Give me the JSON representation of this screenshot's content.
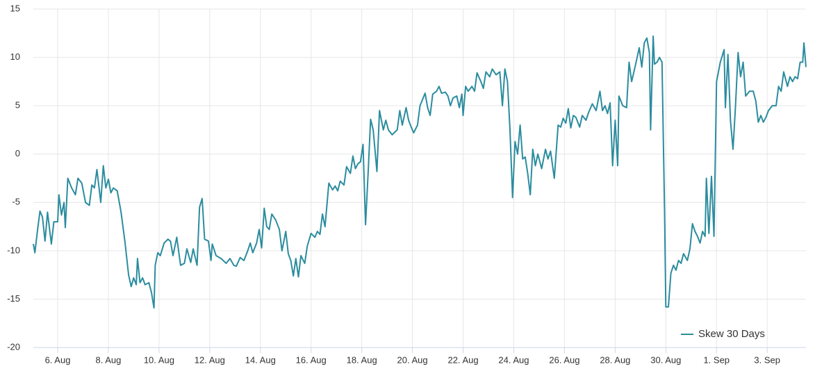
{
  "chart_data": {
    "type": "line",
    "x": [
      5.04,
      5.1,
      5.2,
      5.3,
      5.4,
      5.5,
      5.6,
      5.75,
      5.85,
      6.0,
      6.05,
      6.15,
      6.25,
      6.3,
      6.4,
      6.55,
      6.7,
      6.8,
      6.95,
      7.1,
      7.25,
      7.35,
      7.45,
      7.55,
      7.7,
      7.8,
      7.9,
      8.0,
      8.1,
      8.2,
      8.35,
      8.5,
      8.65,
      8.8,
      8.9,
      9.0,
      9.1,
      9.15,
      9.25,
      9.35,
      9.45,
      9.6,
      9.7,
      9.8,
      9.85,
      9.95,
      10.05,
      10.2,
      10.35,
      10.45,
      10.55,
      10.7,
      10.85,
      11.0,
      11.1,
      11.25,
      11.35,
      11.5,
      11.6,
      11.7,
      11.8,
      11.95,
      12.05,
      12.1,
      12.25,
      12.45,
      12.65,
      12.8,
      12.95,
      13.05,
      13.2,
      13.35,
      13.5,
      13.6,
      13.7,
      13.85,
      13.95,
      14.05,
      14.15,
      14.25,
      14.35,
      14.45,
      14.6,
      14.75,
      14.85,
      15.0,
      15.1,
      15.2,
      15.3,
      15.4,
      15.5,
      15.6,
      15.75,
      15.85,
      16.0,
      16.15,
      16.25,
      16.35,
      16.45,
      16.55,
      16.7,
      16.85,
      16.95,
      17.05,
      17.15,
      17.3,
      17.4,
      17.55,
      17.65,
      17.75,
      17.85,
      17.95,
      18.05,
      18.15,
      18.25,
      18.35,
      18.45,
      18.6,
      18.7,
      18.85,
      18.95,
      19.05,
      19.2,
      19.4,
      19.5,
      19.6,
      19.75,
      19.85,
      19.95,
      20.05,
      20.2,
      20.3,
      20.5,
      20.6,
      20.7,
      20.8,
      20.95,
      21.05,
      21.15,
      21.3,
      21.4,
      21.5,
      21.6,
      21.75,
      21.85,
      21.95,
      22.0,
      22.1,
      22.2,
      22.35,
      22.45,
      22.55,
      22.7,
      22.8,
      22.9,
      23.05,
      23.15,
      23.3,
      23.45,
      23.55,
      23.65,
      23.75,
      23.85,
      23.95,
      24.05,
      24.15,
      24.25,
      24.35,
      24.45,
      24.55,
      24.65,
      24.75,
      24.85,
      24.95,
      25.1,
      25.25,
      25.35,
      25.45,
      25.6,
      25.75,
      25.85,
      25.95,
      26.05,
      26.15,
      26.25,
      26.35,
      26.45,
      26.6,
      26.7,
      26.85,
      26.95,
      27.1,
      27.25,
      27.4,
      27.5,
      27.6,
      27.7,
      27.8,
      27.9,
      28.0,
      28.1,
      28.15,
      28.3,
      28.45,
      28.55,
      28.65,
      28.8,
      28.95,
      29.05,
      29.15,
      29.25,
      29.35,
      29.4,
      29.5,
      29.55,
      29.65,
      29.75,
      29.85,
      29.95,
      30.0,
      30.1,
      30.2,
      30.3,
      30.4,
      30.5,
      30.6,
      30.7,
      30.85,
      30.95,
      31.05,
      31.15,
      31.25,
      31.35,
      31.45,
      31.55,
      31.6,
      31.7,
      31.8,
      31.9,
      32.0,
      32.15,
      32.3,
      32.35,
      32.45,
      32.55,
      32.65,
      32.75,
      32.85,
      32.95,
      33.05,
      33.15,
      33.3,
      33.45,
      33.55,
      33.65,
      33.75,
      33.85,
      33.95,
      34.05,
      34.2,
      34.35,
      34.45,
      34.55,
      34.65,
      34.8,
      34.9,
      35.0,
      35.1,
      35.2,
      35.3,
      35.4,
      35.45,
      35.53
    ],
    "series": [
      {
        "name": "Skew 30 Days",
        "color": "#2b8c9e",
        "values": [
          -9.3,
          -10.2,
          -8,
          -5.9,
          -6.5,
          -9,
          -6,
          -9.3,
          -7,
          -7,
          -4.2,
          -6.3,
          -5,
          -7.6,
          -2.5,
          -3.5,
          -4.2,
          -2.5,
          -3,
          -5,
          -5.3,
          -3.2,
          -3.5,
          -1.6,
          -5,
          -1.2,
          -3.5,
          -2.6,
          -4,
          -3.5,
          -3.8,
          -6,
          -9,
          -12.5,
          -13.7,
          -12.8,
          -13.5,
          -10.8,
          -13.3,
          -12.8,
          -13.5,
          -13.3,
          -14.3,
          -15.9,
          -11.5,
          -10.2,
          -10.5,
          -9.2,
          -8.8,
          -9,
          -10.5,
          -8.6,
          -11.5,
          -11.3,
          -9.8,
          -11.2,
          -9.8,
          -11.5,
          -5.5,
          -4.6,
          -8.8,
          -9,
          -11,
          -9.3,
          -10.5,
          -10.8,
          -11.3,
          -10.8,
          -11.5,
          -11.6,
          -10.7,
          -11,
          -10,
          -9.2,
          -10.2,
          -9.2,
          -7.8,
          -9.7,
          -5.6,
          -7.5,
          -7.8,
          -6.2,
          -6.8,
          -7.8,
          -10,
          -8,
          -10.3,
          -11,
          -12.6,
          -10.8,
          -12.7,
          -10.5,
          -11.3,
          -9.5,
          -8.2,
          -8.6,
          -8,
          -8.3,
          -6.2,
          -7.5,
          -3,
          -3.7,
          -3.3,
          -3.8,
          -2.8,
          -3.2,
          -1.3,
          -2,
          -0.2,
          -1.5,
          -1,
          -0.8,
          1,
          -7.3,
          -2,
          3.6,
          2.5,
          -1.8,
          4.5,
          2.5,
          3.5,
          2.5,
          2.0,
          2.5,
          4.5,
          3,
          4.8,
          3.5,
          2.8,
          2.2,
          3,
          5,
          6.3,
          4.8,
          4,
          6.2,
          6.5,
          7,
          6.3,
          6.4,
          6,
          5,
          5.8,
          6,
          4.8,
          6.2,
          4,
          7,
          6.5,
          7,
          6.5,
          8.4,
          7.5,
          6.8,
          8.5,
          8,
          8.8,
          8.2,
          8.5,
          5,
          8.8,
          7.5,
          2.5,
          -4.5,
          1.3,
          0,
          3,
          -0.5,
          -0.3,
          -2,
          -4.2,
          0.5,
          -1.2,
          0,
          -1.5,
          0.5,
          -0.5,
          0.3,
          -2.5,
          3,
          2.8,
          3.7,
          3.2,
          4.7,
          2.7,
          4,
          3.8,
          2.8,
          4,
          3.5,
          4.3,
          5.2,
          4.5,
          6.5,
          4.5,
          5,
          4.2,
          5.3,
          -1.2,
          3.5,
          -1.2,
          6,
          5,
          4.8,
          9.5,
          7.5,
          9.2,
          11,
          9,
          11.5,
          12,
          10.5,
          2.5,
          12.2,
          9.3,
          9.5,
          10,
          9.5,
          -6,
          -15.8,
          -15.8,
          -12.3,
          -11.5,
          -12,
          -11,
          -11.3,
          -10.3,
          -11,
          -9.8,
          -7.2,
          -8,
          -8.5,
          -9.2,
          -8,
          -8.5,
          -2.5,
          -8.2,
          -2.3,
          -8.5,
          7.5,
          9.5,
          10.8,
          4.8,
          10.3,
          3.5,
          0.5,
          5,
          10.5,
          8,
          9.5,
          6,
          6.5,
          6.5,
          5.5,
          3.3,
          4,
          3.3,
          3.8,
          4.5,
          5,
          5,
          7,
          6.5,
          8.5,
          7,
          8,
          7.5,
          8,
          7.8,
          9.5,
          9.5,
          11.5,
          9
        ]
      }
    ],
    "xlim": [
      5.04,
      35.53
    ],
    "xticks": [
      {
        "value": 6,
        "label": "6. Aug"
      },
      {
        "value": 8,
        "label": "8. Aug"
      },
      {
        "value": 10,
        "label": "10. Aug"
      },
      {
        "value": 12,
        "label": "12. Aug"
      },
      {
        "value": 14,
        "label": "14. Aug"
      },
      {
        "value": 16,
        "label": "16. Aug"
      },
      {
        "value": 18,
        "label": "18. Aug"
      },
      {
        "value": 20,
        "label": "20. Aug"
      },
      {
        "value": 22,
        "label": "22. Aug"
      },
      {
        "value": 24,
        "label": "24. Aug"
      },
      {
        "value": 26,
        "label": "26. Aug"
      },
      {
        "value": 28,
        "label": "28. Aug"
      },
      {
        "value": 30,
        "label": "30. Aug"
      },
      {
        "value": 32,
        "label": "1. Sep"
      },
      {
        "value": 34,
        "label": "3. Sep"
      }
    ],
    "ylim": [
      -20,
      15
    ],
    "yticks": [
      -20,
      -15,
      -10,
      -5,
      0,
      5,
      10,
      15
    ],
    "grid": true,
    "legend": "bottom-right"
  }
}
